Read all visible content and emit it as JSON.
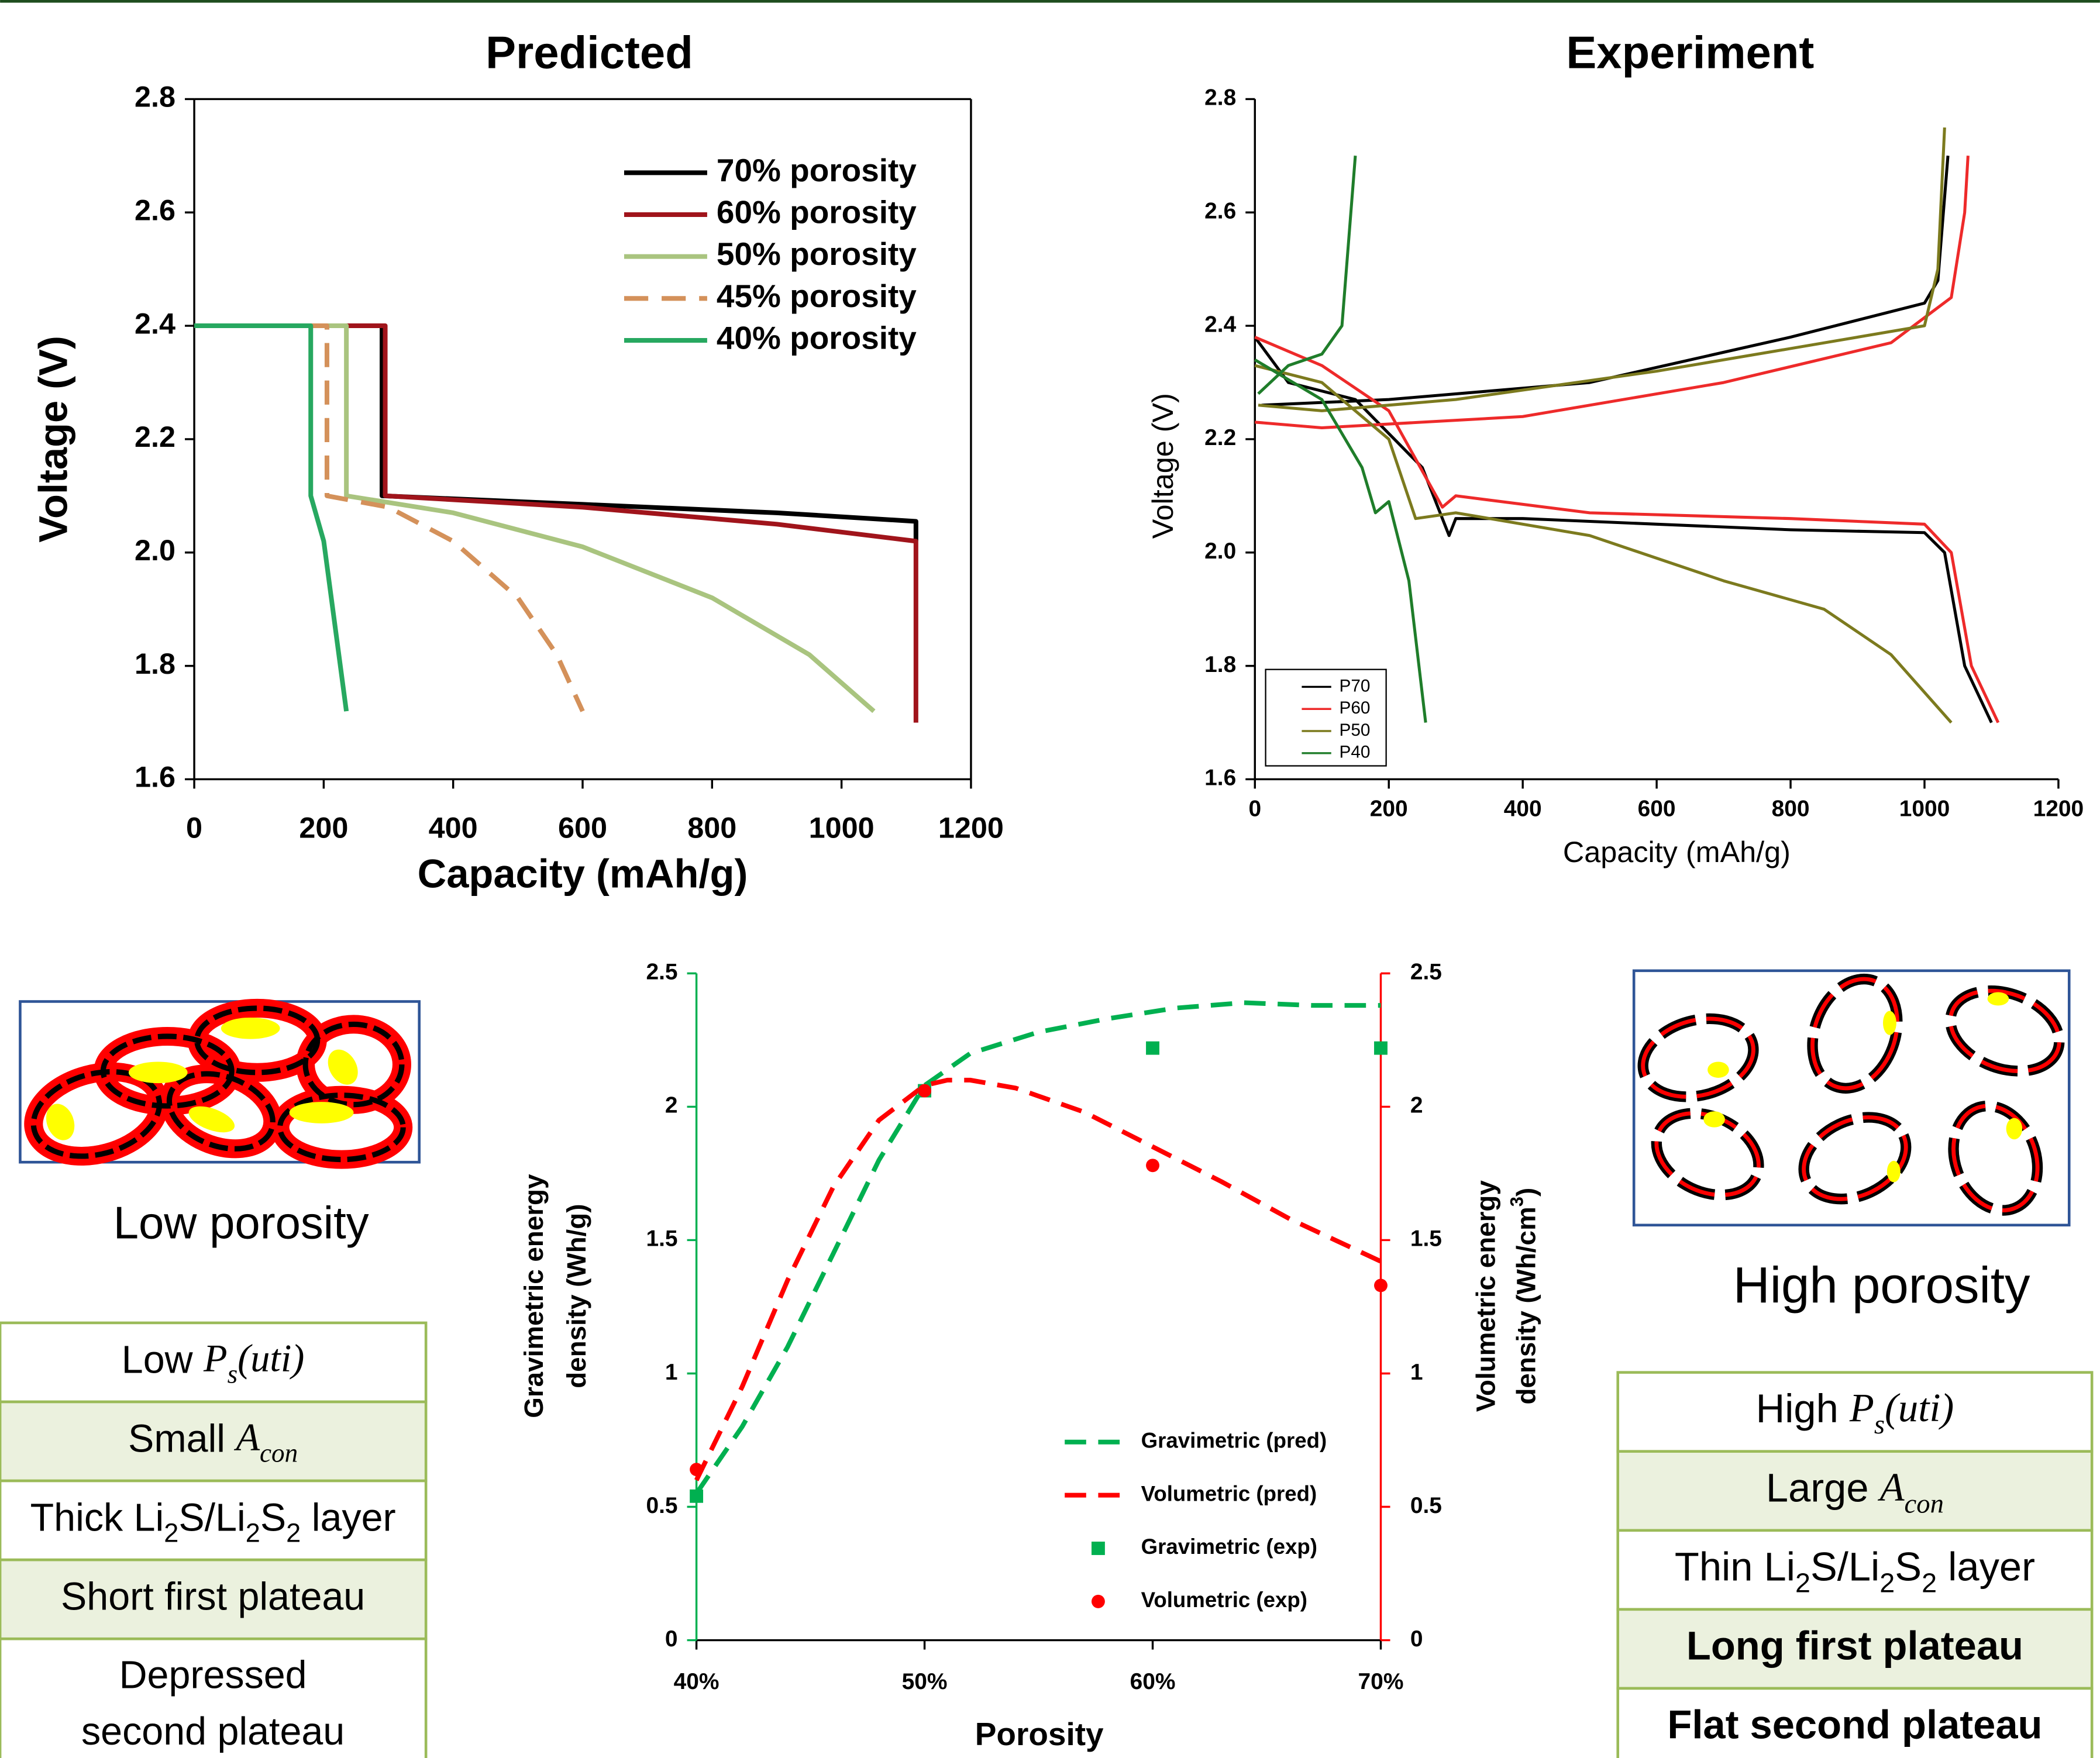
{
  "chart_data": [
    {
      "type": "line",
      "title": "Predicted",
      "x_label": "Capacity (mAh/g)",
      "y_label": "Voltage (V)",
      "xlim": [
        0,
        1200
      ],
      "xticks": [
        0,
        200,
        400,
        600,
        800,
        1000,
        1200
      ],
      "ylim": [
        1.6,
        2.8
      ],
      "yticks": [
        1.6,
        1.8,
        {
          "value": 2,
          "label": "2.0"
        },
        2.2,
        2.4,
        2.6,
        2.8
      ],
      "legend": "upper right",
      "series": [
        {
          "name": "70% porosity",
          "color": "#000000",
          "style": "solid",
          "x": [
            0,
            290,
            290,
            600,
            900,
            1115,
            1115
          ],
          "values": [
            2.4,
            2.4,
            2.1,
            2.085,
            2.07,
            2.055,
            2.02
          ]
        },
        {
          "name": "60% porosity",
          "color": "#a0141b",
          "style": "solid",
          "x": [
            0,
            295,
            295,
            600,
            900,
            1115,
            1115
          ],
          "values": [
            2.4,
            2.4,
            2.1,
            2.08,
            2.05,
            2.02,
            1.7
          ]
        },
        {
          "name": "50% porosity",
          "color": "#a9c47f",
          "style": "solid",
          "x": [
            0,
            235,
            235,
            400,
            600,
            800,
            950,
            1050
          ],
          "values": [
            2.4,
            2.4,
            2.1,
            2.07,
            2.01,
            1.92,
            1.82,
            1.72
          ]
        },
        {
          "name": "45% porosity",
          "color": "#d4915a",
          "style": "dashed",
          "x": [
            0,
            205,
            205,
            300,
            400,
            500,
            560,
            600
          ],
          "values": [
            2.4,
            2.4,
            2.1,
            2.08,
            2.02,
            1.92,
            1.82,
            1.72
          ]
        },
        {
          "name": "40% porosity",
          "color": "#27a860",
          "style": "solid",
          "x": [
            0,
            180,
            180,
            200,
            235
          ],
          "values": [
            2.4,
            2.4,
            2.1,
            2.02,
            1.72
          ]
        }
      ]
    },
    {
      "type": "line",
      "title": "Experiment",
      "x_label": "Capacity (mAh/g)",
      "y_label": "Voltage (V)",
      "xlim": [
        0,
        1200
      ],
      "xticks": [
        0,
        200,
        400,
        600,
        800,
        1000,
        1200
      ],
      "ylim": [
        1.6,
        2.8
      ],
      "yticks": [
        1.6,
        1.8,
        {
          "value": 2,
          "label": "2.0"
        },
        2.2,
        2.4,
        2.6,
        2.8
      ],
      "legend": "lower left",
      "series": [
        {
          "name": "P70",
          "color": "#000000",
          "style": "solid",
          "x": [
            0,
            50,
            150,
            250,
            290,
            300,
            400,
            600,
            800,
            1000,
            1030,
            1060,
            1100,
            null,
            10,
            200,
            500,
            800,
            1000,
            1020,
            1035
          ],
          "values": [
            2.38,
            2.3,
            2.27,
            2.15,
            2.03,
            2.06,
            2.06,
            2.05,
            2.04,
            2.035,
            2.0,
            1.8,
            1.7,
            null,
            2.26,
            2.27,
            2.3,
            2.38,
            2.44,
            2.48,
            2.7
          ]
        },
        {
          "name": "P60",
          "color": "#ee2a2a",
          "style": "solid",
          "x": [
            0,
            100,
            200,
            280,
            300,
            500,
            800,
            1000,
            1040,
            1070,
            1110,
            null,
            0,
            100,
            400,
            700,
            950,
            1040,
            1060,
            1065
          ],
          "values": [
            2.38,
            2.33,
            2.25,
            2.08,
            2.1,
            2.07,
            2.06,
            2.05,
            2.0,
            1.8,
            1.7,
            null,
            2.23,
            2.22,
            2.24,
            2.3,
            2.37,
            2.45,
            2.6,
            2.7
          ]
        },
        {
          "name": "P50",
          "color": "#7c7a1e",
          "style": "solid",
          "x": [
            0,
            100,
            200,
            240,
            300,
            500,
            700,
            850,
            950,
            1040,
            null,
            5,
            100,
            300,
            600,
            800,
            1000,
            1020,
            1030
          ],
          "values": [
            2.33,
            2.3,
            2.2,
            2.06,
            2.07,
            2.03,
            1.95,
            1.9,
            1.82,
            1.7,
            null,
            2.26,
            2.25,
            2.27,
            2.32,
            2.36,
            2.4,
            2.5,
            2.75
          ]
        },
        {
          "name": "P40",
          "color": "#1f7d2a",
          "style": "solid",
          "x": [
            0,
            100,
            160,
            180,
            200,
            230,
            255,
            null,
            5,
            50,
            100,
            130,
            150
          ],
          "values": [
            2.34,
            2.27,
            2.15,
            2.07,
            2.09,
            1.95,
            1.7,
            null,
            2.28,
            2.33,
            2.35,
            2.4,
            2.7
          ]
        }
      ]
    },
    {
      "type": "line",
      "x_label": "Porosity",
      "y_label": [
        [
          {
            "text": "Gravimetric energy"
          }
        ],
        [
          {
            "text": "density (Wh/g)"
          }
        ]
      ],
      "y2_label": [
        [
          {
            "text": "Volumetric energy"
          }
        ],
        [
          {
            "text": "density (Wh/cm"
          },
          {
            "text": "3",
            "style": "sup"
          },
          {
            "text": ")"
          }
        ]
      ],
      "xlim": [
        40,
        70
      ],
      "xticks": [
        {
          "value": 40,
          "label": "40%"
        },
        {
          "value": 50,
          "label": "50%"
        },
        {
          "value": 60,
          "label": "60%"
        },
        {
          "value": 70,
          "label": "70%"
        }
      ],
      "ylim": [
        0,
        2.5
      ],
      "yticks": [
        0,
        0.5,
        1,
        1.5,
        2,
        2.5
      ],
      "y2lim": [
        0,
        2.5
      ],
      "y2ticks": [
        0,
        0.5,
        1,
        1.5,
        2,
        2.5
      ],
      "y_color": "#00b050",
      "y2_color": "#ff0000",
      "legend": "lower right",
      "series": [
        {
          "name": "Gravimetric (pred)",
          "color": "#00b050",
          "style": "dashed",
          "x": [
            40,
            42,
            44,
            46,
            48,
            50,
            52,
            55,
            58,
            61,
            64,
            67,
            70
          ],
          "values": [
            0.55,
            0.8,
            1.1,
            1.45,
            1.8,
            2.08,
            2.2,
            2.28,
            2.33,
            2.37,
            2.39,
            2.38,
            2.38
          ]
        },
        {
          "name": "Volumetric (pred)",
          "color": "#ff0000",
          "style": "dashed",
          "axis": "y2",
          "x": [
            40,
            42,
            44,
            46,
            48,
            50,
            51,
            52,
            54,
            57,
            60,
            63,
            66,
            70
          ],
          "values": [
            0.6,
            0.95,
            1.35,
            1.7,
            1.95,
            2.08,
            2.1,
            2.1,
            2.07,
            1.98,
            1.85,
            1.72,
            1.58,
            1.42
          ]
        },
        {
          "name": "Gravimetric (exp)",
          "color": "#00b050",
          "style": "square",
          "x": [
            40,
            50,
            60,
            70
          ],
          "values": [
            0.54,
            2.06,
            2.22,
            2.22
          ]
        },
        {
          "name": "Volumetric (exp)",
          "color": "#ff0000",
          "style": "circle",
          "axis": "y2",
          "x": [
            40,
            50,
            60,
            70
          ],
          "values": [
            0.64,
            2.06,
            1.78,
            1.33
          ]
        }
      ]
    }
  ],
  "panels": {
    "low": {
      "label": "Low porosity",
      "rows": [
        {
          "lines": [
            [
              {
                "text": "Low "
              },
              {
                "text": "P",
                "style": "math"
              },
              {
                "text": "s",
                "style": "math-sub"
              },
              {
                "text": "(uti)",
                "style": "math"
              }
            ]
          ]
        },
        {
          "lines": [
            [
              {
                "text": "Small "
              },
              {
                "text": "A",
                "style": "math"
              },
              {
                "text": "con",
                "style": "math-sub"
              }
            ]
          ]
        },
        {
          "lines": [
            [
              {
                "text": "Thick Li"
              },
              {
                "text": "2",
                "style": "sub"
              },
              {
                "text": "S/Li"
              },
              {
                "text": "2",
                "style": "sub"
              },
              {
                "text": "S"
              },
              {
                "text": "2",
                "style": "sub"
              },
              {
                "text": " layer"
              }
            ]
          ]
        },
        {
          "lines": [
            [
              {
                "text": "Short first plateau"
              }
            ]
          ]
        },
        {
          "lines": [
            [
              {
                "text": "Depressed"
              }
            ],
            [
              {
                "text": "second plateau"
              }
            ]
          ]
        }
      ]
    },
    "high": {
      "label": "High porosity",
      "rows": [
        {
          "lines": [
            [
              {
                "text": "High "
              },
              {
                "text": "P",
                "style": "math"
              },
              {
                "text": "s",
                "style": "math-sub"
              },
              {
                "text": "(uti)",
                "style": "math"
              }
            ]
          ]
        },
        {
          "lines": [
            [
              {
                "text": "Large "
              },
              {
                "text": "A",
                "style": "math"
              },
              {
                "text": "con",
                "style": "math-sub"
              }
            ]
          ]
        },
        {
          "lines": [
            [
              {
                "text": "Thin Li"
              },
              {
                "text": "2",
                "style": "sub"
              },
              {
                "text": "S/Li"
              },
              {
                "text": "2",
                "style": "sub"
              },
              {
                "text": "S"
              },
              {
                "text": "2",
                "style": "sub"
              },
              {
                "text": " layer"
              }
            ]
          ]
        },
        {
          "lines": [
            [
              {
                "text": "Long first plateau"
              }
            ]
          ],
          "emphasis": true
        },
        {
          "lines": [
            [
              {
                "text": "Flat second plateau"
              }
            ]
          ],
          "emphasis": true
        }
      ]
    }
  }
}
